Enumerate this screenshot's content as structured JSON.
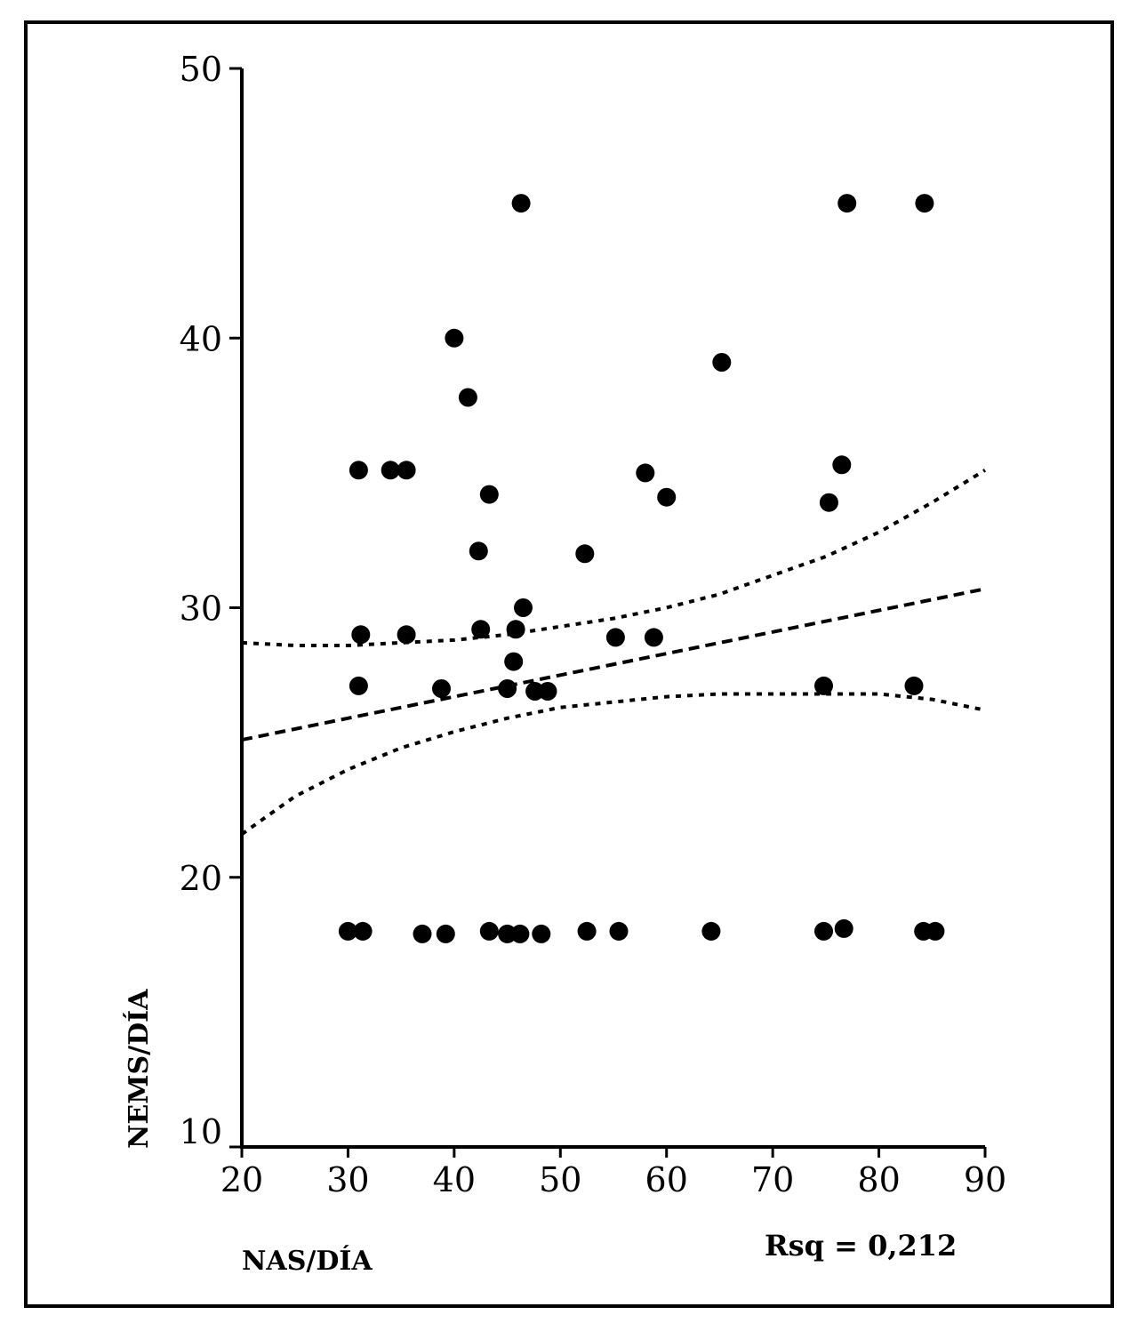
{
  "chart_data": {
    "type": "scatter",
    "xlabel": "NAS/DÍA",
    "ylabel": "NEMS/DÍA",
    "xlim": [
      20,
      90
    ],
    "ylim": [
      10,
      50
    ],
    "x_ticks": [
      20,
      30,
      40,
      50,
      60,
      70,
      80,
      90
    ],
    "y_ticks": [
      10,
      20,
      30,
      40,
      50
    ],
    "grid": false,
    "annotation": "Rsq = 0,212",
    "points": [
      {
        "x": 46.3,
        "y": 45.0
      },
      {
        "x": 77.0,
        "y": 45.0
      },
      {
        "x": 84.3,
        "y": 45.0
      },
      {
        "x": 40.0,
        "y": 40.0
      },
      {
        "x": 65.2,
        "y": 39.1
      },
      {
        "x": 41.3,
        "y": 37.8
      },
      {
        "x": 31.0,
        "y": 35.1
      },
      {
        "x": 34.0,
        "y": 35.1
      },
      {
        "x": 35.5,
        "y": 35.1
      },
      {
        "x": 58.0,
        "y": 35.0
      },
      {
        "x": 76.5,
        "y": 35.3
      },
      {
        "x": 43.3,
        "y": 34.2
      },
      {
        "x": 60.0,
        "y": 34.1
      },
      {
        "x": 75.3,
        "y": 33.9
      },
      {
        "x": 42.3,
        "y": 32.1
      },
      {
        "x": 52.3,
        "y": 32.0
      },
      {
        "x": 46.5,
        "y": 30.0
      },
      {
        "x": 31.2,
        "y": 29.0
      },
      {
        "x": 35.5,
        "y": 29.0
      },
      {
        "x": 42.5,
        "y": 29.2
      },
      {
        "x": 45.8,
        "y": 29.2
      },
      {
        "x": 55.2,
        "y": 28.9
      },
      {
        "x": 58.8,
        "y": 28.9
      },
      {
        "x": 45.6,
        "y": 28.0
      },
      {
        "x": 31.0,
        "y": 27.1
      },
      {
        "x": 38.8,
        "y": 27.0
      },
      {
        "x": 45.0,
        "y": 27.0
      },
      {
        "x": 47.6,
        "y": 26.9
      },
      {
        "x": 48.8,
        "y": 26.9
      },
      {
        "x": 74.8,
        "y": 27.1
      },
      {
        "x": 83.3,
        "y": 27.1
      },
      {
        "x": 30.0,
        "y": 18.0
      },
      {
        "x": 31.4,
        "y": 18.0
      },
      {
        "x": 37.0,
        "y": 17.9
      },
      {
        "x": 39.2,
        "y": 17.9
      },
      {
        "x": 43.3,
        "y": 18.0
      },
      {
        "x": 45.0,
        "y": 17.9
      },
      {
        "x": 46.2,
        "y": 17.9
      },
      {
        "x": 48.2,
        "y": 17.9
      },
      {
        "x": 52.5,
        "y": 18.0
      },
      {
        "x": 55.5,
        "y": 18.0
      },
      {
        "x": 64.2,
        "y": 18.0
      },
      {
        "x": 74.8,
        "y": 18.0
      },
      {
        "x": 76.7,
        "y": 18.1
      },
      {
        "x": 84.2,
        "y": 18.0
      },
      {
        "x": 85.3,
        "y": 18.0
      }
    ],
    "series": [
      {
        "style": "dashed",
        "x": [
          20,
          30,
          40,
          50,
          60,
          70,
          80,
          90
        ],
        "y": [
          25.1,
          25.9,
          26.7,
          27.5,
          28.3,
          29.1,
          29.9,
          30.7
        ]
      },
      {
        "style": "dotted",
        "x": [
          20,
          25,
          30,
          35,
          40,
          45,
          50,
          55,
          60,
          65,
          70,
          75,
          80,
          85,
          90
        ],
        "y": [
          28.7,
          28.6,
          28.6,
          28.7,
          28.8,
          29.0,
          29.3,
          29.6,
          30.0,
          30.5,
          31.2,
          31.9,
          32.8,
          33.9,
          35.1
        ]
      },
      {
        "style": "dotted",
        "x": [
          20,
          25,
          30,
          35,
          40,
          45,
          50,
          55,
          60,
          65,
          70,
          75,
          80,
          85,
          90
        ],
        "y": [
          21.6,
          23.0,
          24.0,
          24.8,
          25.4,
          25.9,
          26.3,
          26.5,
          26.7,
          26.8,
          26.8,
          26.8,
          26.8,
          26.6,
          26.2
        ]
      }
    ]
  }
}
